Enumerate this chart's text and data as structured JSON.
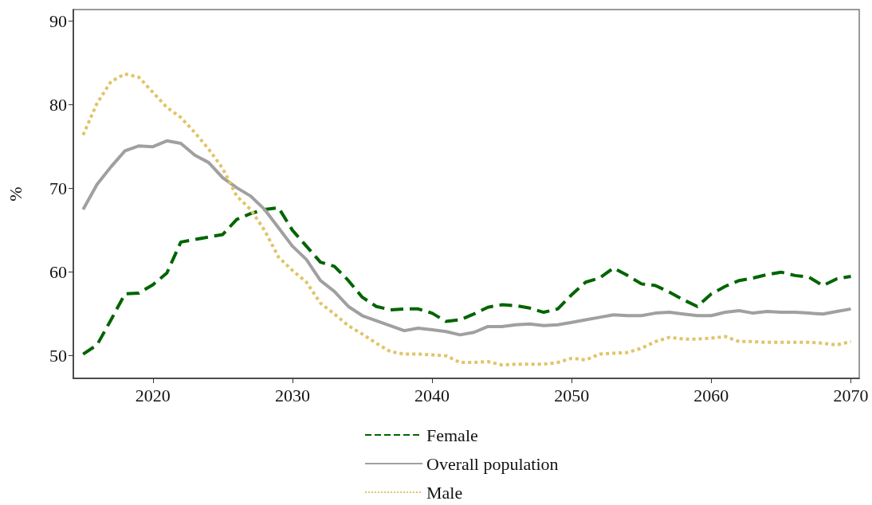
{
  "chart_data": {
    "type": "line",
    "ylabel": "%",
    "x": [
      2015,
      2016,
      2017,
      2018,
      2019,
      2020,
      2021,
      2022,
      2023,
      2024,
      2025,
      2026,
      2027,
      2028,
      2029,
      2030,
      2031,
      2032,
      2033,
      2034,
      2035,
      2036,
      2037,
      2038,
      2039,
      2040,
      2041,
      2042,
      2043,
      2044,
      2045,
      2046,
      2047,
      2048,
      2049,
      2050,
      2051,
      2052,
      2053,
      2054,
      2055,
      2056,
      2057,
      2058,
      2059,
      2060,
      2061,
      2062,
      2063,
      2064,
      2065,
      2066,
      2067,
      2068,
      2069,
      2070
    ],
    "xlim": [
      2014.3,
      2070.6
    ],
    "xticks": [
      2020,
      2030,
      2040,
      2050,
      2060,
      2070
    ],
    "ylim": [
      47.3,
      91.4
    ],
    "yticks": [
      50,
      60,
      70,
      80,
      90
    ],
    "grid": false,
    "legend": "bottom",
    "marker": "none",
    "series": [
      {
        "name": "Female",
        "color": "#006400",
        "line_style": "dashed",
        "values": [
          50.2,
          51.3,
          54.3,
          57.4,
          57.5,
          58.5,
          59.9,
          63.6,
          63.9,
          64.2,
          64.5,
          66.3,
          67.0,
          67.5,
          67.7,
          65.0,
          63.1,
          61.2,
          60.7,
          59.0,
          57.0,
          55.9,
          55.5,
          55.6,
          55.6,
          55.1,
          54.1,
          54.3,
          55.0,
          55.8,
          56.1,
          56.0,
          55.7,
          55.2,
          55.6,
          57.3,
          58.8,
          59.3,
          60.5,
          59.6,
          58.6,
          58.4,
          57.6,
          56.7,
          55.9,
          57.4,
          58.3,
          59.0,
          59.3,
          59.7,
          60.0,
          59.6,
          59.4,
          58.4,
          59.2,
          59.5
        ]
      },
      {
        "name": "Overall population",
        "color": "#a0a0a0",
        "line_style": "solid",
        "values": [
          67.5,
          70.5,
          72.6,
          74.5,
          75.1,
          75.0,
          75.7,
          75.4,
          74.0,
          73.1,
          71.3,
          70.1,
          69.1,
          67.5,
          65.3,
          63.1,
          61.5,
          59.0,
          57.7,
          55.9,
          54.8,
          54.2,
          53.6,
          53.0,
          53.3,
          53.1,
          52.9,
          52.5,
          52.8,
          53.5,
          53.5,
          53.7,
          53.8,
          53.6,
          53.7,
          54.0,
          54.3,
          54.6,
          54.9,
          54.8,
          54.8,
          55.1,
          55.2,
          55.0,
          54.8,
          54.8,
          55.2,
          55.4,
          55.1,
          55.3,
          55.2,
          55.2,
          55.1,
          55.0,
          55.3,
          55.6
        ]
      },
      {
        "name": "Male",
        "color": "#e0c468",
        "line_style": "dotted",
        "values": [
          76.4,
          80.2,
          82.8,
          83.7,
          83.3,
          81.5,
          79.7,
          78.5,
          76.7,
          74.7,
          72.4,
          69.1,
          67.5,
          65.0,
          61.8,
          60.2,
          58.8,
          56.3,
          55.0,
          53.6,
          52.6,
          51.5,
          50.5,
          50.2,
          50.2,
          50.1,
          50.0,
          49.2,
          49.2,
          49.3,
          48.9,
          49.0,
          49.0,
          49.0,
          49.2,
          49.7,
          49.5,
          50.2,
          50.3,
          50.4,
          50.9,
          51.7,
          52.2,
          52.0,
          52.0,
          52.1,
          52.3,
          51.7,
          51.7,
          51.6,
          51.6,
          51.6,
          51.6,
          51.5,
          51.3,
          51.7
        ]
      }
    ]
  }
}
